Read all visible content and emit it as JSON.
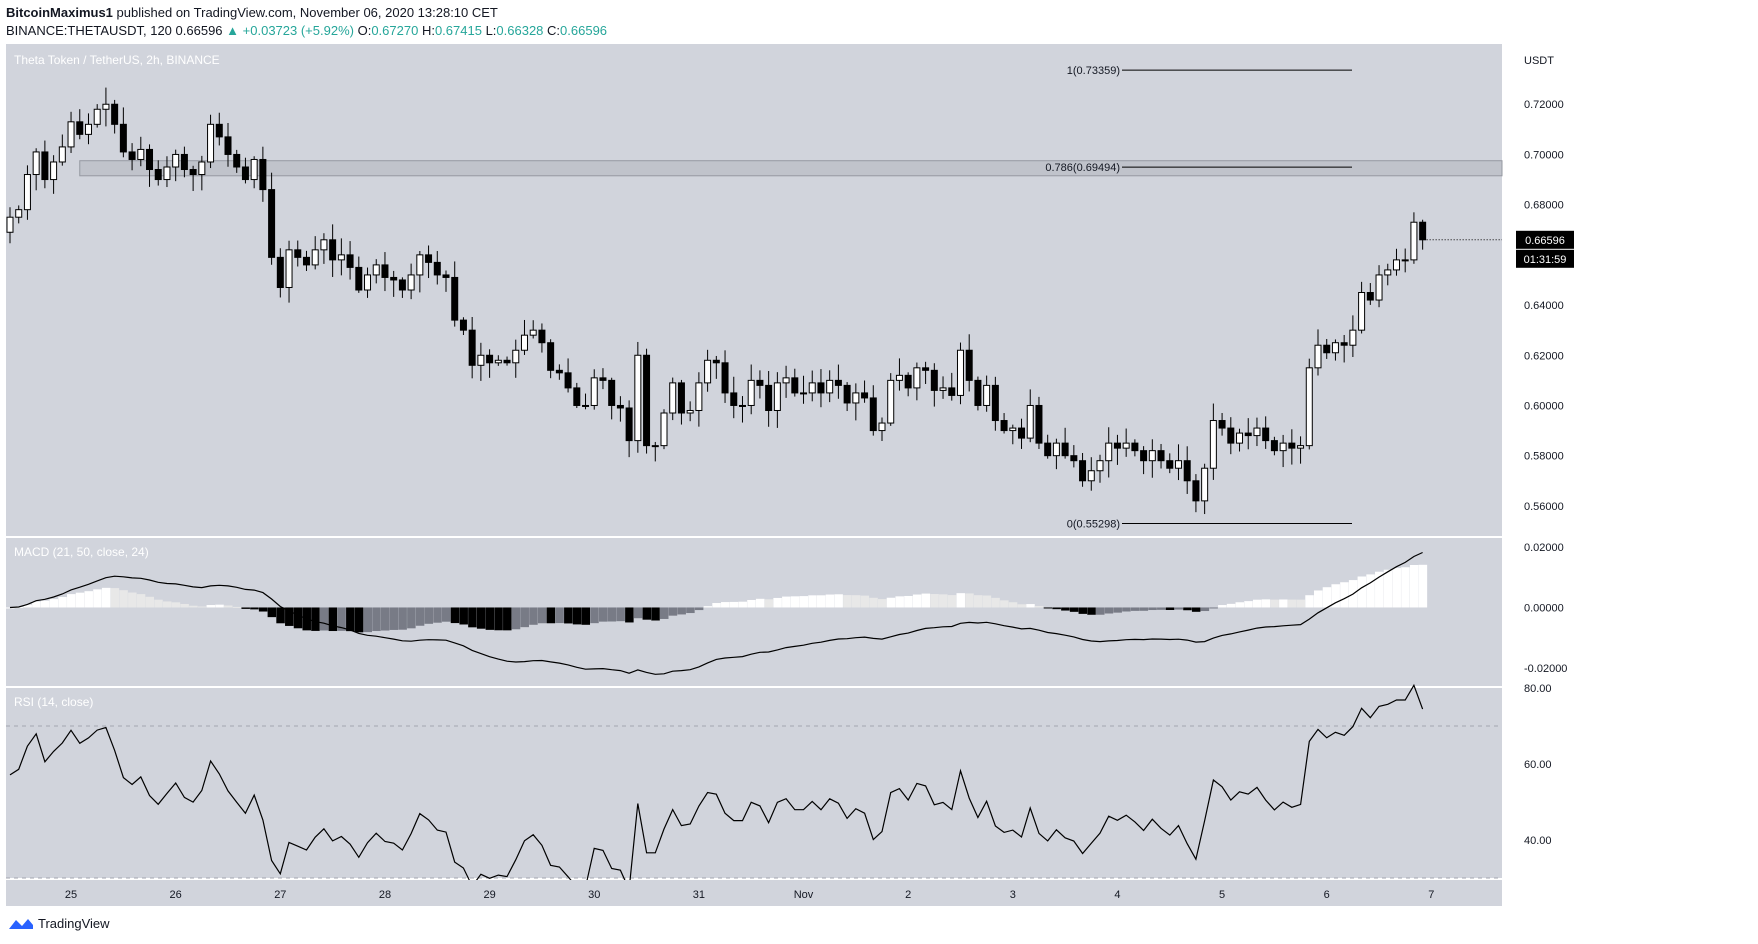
{
  "header": {
    "author": "BitcoinMaximus1",
    "published_text": "published on TradingView.com, November 06, 2020 13:28:10 CET",
    "symbol": "BINANCE:THETAUSDT, 120",
    "last": "0.66596",
    "change": "▲ +0.03723 (+5.92%)",
    "o_label": "O:",
    "o_val": "0.67270",
    "h_label": "H:",
    "h_val": "0.67415",
    "l_label": "L:",
    "l_val": "0.66328",
    "c_label": "C:",
    "c_val": "0.66596"
  },
  "footer": {
    "brand": "TradingView"
  },
  "colors": {
    "panel_bg": "#d1d4dc",
    "price_badge": "#000000",
    "text_up": "#26a69a"
  },
  "chart_data": [
    {
      "type": "candlestick",
      "title": "Theta Token / TetherUS, 2h, BINANCE",
      "currency": "USDT",
      "ylim": [
        0.548,
        0.744
      ],
      "y_ticks": [
        "0.72000",
        "0.70000",
        "0.68000",
        "0.66000",
        "0.64000",
        "0.62000",
        "0.60000",
        "0.58000",
        "0.56000"
      ],
      "y_tick_values": [
        0.72,
        0.7,
        0.68,
        0.66,
        0.64,
        0.62,
        0.6,
        0.58,
        0.56
      ],
      "x_ticks": [
        "25",
        "26",
        "27",
        "28",
        "29",
        "30",
        "31",
        "Nov",
        "2",
        "3",
        "4",
        "5",
        "6",
        "7"
      ],
      "x_tick_index": [
        7,
        19,
        31,
        43,
        55,
        67,
        79,
        91,
        103,
        115,
        127,
        139,
        151,
        163
      ],
      "last_price_label": "0.66596",
      "countdown_label": "01:31:59",
      "fib_levels": [
        {
          "label": "1(0.73359)",
          "value": 0.73359
        },
        {
          "label": "0.786(0.69494)",
          "value": 0.69494
        },
        {
          "label": "0(0.55298)",
          "value": 0.55298
        }
      ],
      "zone": {
        "from": 0.6915,
        "to": 0.6975
      },
      "closes": [
        0.675,
        0.678,
        0.692,
        0.701,
        0.69,
        0.697,
        0.703,
        0.713,
        0.708,
        0.712,
        0.718,
        0.72,
        0.712,
        0.701,
        0.698,
        0.702,
        0.694,
        0.69,
        0.695,
        0.7,
        0.694,
        0.692,
        0.697,
        0.712,
        0.707,
        0.7,
        0.695,
        0.69,
        0.698,
        0.686,
        0.659,
        0.647,
        0.662,
        0.659,
        0.656,
        0.662,
        0.666,
        0.658,
        0.66,
        0.655,
        0.646,
        0.652,
        0.656,
        0.651,
        0.65,
        0.646,
        0.652,
        0.66,
        0.657,
        0.652,
        0.651,
        0.634,
        0.63,
        0.616,
        0.62,
        0.617,
        0.618,
        0.617,
        0.622,
        0.628,
        0.63,
        0.625,
        0.614,
        0.613,
        0.607,
        0.6,
        0.6,
        0.611,
        0.61,
        0.6,
        0.599,
        0.586,
        0.62,
        0.584,
        0.584,
        0.597,
        0.609,
        0.597,
        0.598,
        0.609,
        0.618,
        0.617,
        0.605,
        0.6,
        0.6,
        0.61,
        0.608,
        0.598,
        0.609,
        0.611,
        0.605,
        0.605,
        0.609,
        0.605,
        0.61,
        0.608,
        0.601,
        0.605,
        0.603,
        0.59,
        0.593,
        0.61,
        0.612,
        0.607,
        0.615,
        0.614,
        0.606,
        0.607,
        0.604,
        0.622,
        0.61,
        0.6,
        0.608,
        0.594,
        0.59,
        0.591,
        0.587,
        0.6,
        0.585,
        0.58,
        0.585,
        0.58,
        0.578,
        0.57,
        0.574,
        0.578,
        0.585,
        0.583,
        0.585,
        0.582,
        0.578,
        0.582,
        0.578,
        0.575,
        0.578,
        0.57,
        0.562,
        0.575,
        0.594,
        0.591,
        0.585,
        0.589,
        0.588,
        0.591,
        0.586,
        0.582,
        0.585,
        0.583,
        0.584,
        0.615,
        0.624,
        0.621,
        0.625,
        0.624,
        0.63,
        0.645,
        0.642,
        0.652,
        0.654,
        0.658,
        0.658,
        0.673,
        0.666
      ]
    },
    {
      "type": "macd",
      "title": "MACD (21, 50, close, 24)",
      "ylim": [
        -0.026,
        0.023
      ],
      "y_ticks": [
        "0.02000",
        "0.00000",
        "-0.02000"
      ],
      "y_tick_values": [
        0.02,
        0.0,
        -0.02
      ]
    },
    {
      "type": "line",
      "title": "RSI (14, close)",
      "ylim": [
        30,
        80
      ],
      "bands": [
        70,
        30
      ],
      "y_ticks": [
        "80.00",
        "60.00",
        "40.00"
      ],
      "y_tick_values": [
        80,
        60,
        40
      ]
    }
  ]
}
